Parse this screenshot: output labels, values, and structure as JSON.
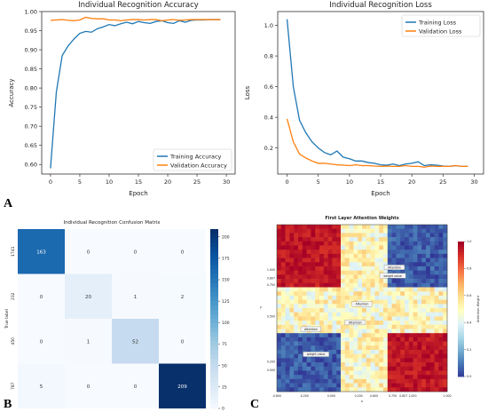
{
  "panel_labels": [
    "A",
    "B",
    "C"
  ],
  "chart_data": [
    {
      "type": "line",
      "title": "Individual Recognition Accuracy",
      "xlabel": "Epoch",
      "ylabel": "Accuracy",
      "xlim": [
        -1.5,
        31.5
      ],
      "ylim": [
        0.575,
        1.0
      ],
      "xticks": [
        0,
        5,
        10,
        15,
        20,
        25,
        30
      ],
      "yticks": [
        0.6,
        0.65,
        0.7,
        0.75,
        0.8,
        0.85,
        0.9,
        0.95,
        1.0
      ],
      "ytick_labels": [
        "0.60",
        "0.65",
        "0.70",
        "0.75",
        "0.80",
        "0.85",
        "0.90",
        "0.95",
        "1.00"
      ],
      "x": [
        0,
        1,
        2,
        3,
        4,
        5,
        6,
        7,
        8,
        9,
        10,
        11,
        12,
        13,
        14,
        15,
        16,
        17,
        18,
        19,
        20,
        21,
        22,
        23,
        24,
        25,
        26,
        27,
        28,
        29
      ],
      "series": [
        {
          "name": "Training Accuracy",
          "color": "#1f77b4",
          "values": [
            0.59,
            0.79,
            0.885,
            0.91,
            0.928,
            0.943,
            0.948,
            0.946,
            0.955,
            0.96,
            0.966,
            0.963,
            0.968,
            0.972,
            0.968,
            0.974,
            0.971,
            0.969,
            0.974,
            0.976,
            0.971,
            0.969,
            0.976,
            0.972,
            0.977,
            0.978,
            0.978,
            0.979,
            0.979,
            0.979
          ]
        },
        {
          "name": "Validation Accuracy",
          "color": "#ff7f0e",
          "values": [
            0.977,
            0.978,
            0.979,
            0.977,
            0.976,
            0.978,
            0.985,
            0.982,
            0.981,
            0.981,
            0.978,
            0.978,
            0.976,
            0.978,
            0.979,
            0.979,
            0.978,
            0.979,
            0.979,
            0.976,
            0.978,
            0.979,
            0.977,
            0.978,
            0.979,
            0.979,
            0.979,
            0.979,
            0.979,
            0.979
          ]
        }
      ],
      "legend": "bottom-right",
      "grid": false
    },
    {
      "type": "line",
      "title": "Individual Recognition Loss",
      "xlabel": "Epoch",
      "ylabel": "Loss",
      "xlim": [
        -1.5,
        31.5
      ],
      "ylim": [
        0.03,
        1.09
      ],
      "xticks": [
        0,
        5,
        10,
        15,
        20,
        25,
        30
      ],
      "yticks": [
        0.2,
        0.4,
        0.6,
        0.8,
        1.0
      ],
      "ytick_labels": [
        "0.2",
        "0.4",
        "0.6",
        "0.8",
        "1.0"
      ],
      "x": [
        0,
        1,
        2,
        3,
        4,
        5,
        6,
        7,
        8,
        9,
        10,
        11,
        12,
        13,
        14,
        15,
        16,
        17,
        18,
        19,
        20,
        21,
        22,
        23,
        24,
        25,
        26,
        27,
        28,
        29
      ],
      "series": [
        {
          "name": "Training Loss",
          "color": "#1f77b4",
          "values": [
            1.04,
            0.6,
            0.38,
            0.3,
            0.24,
            0.2,
            0.17,
            0.155,
            0.18,
            0.14,
            0.13,
            0.115,
            0.115,
            0.105,
            0.1,
            0.09,
            0.088,
            0.095,
            0.085,
            0.095,
            0.1,
            0.11,
            0.085,
            0.09,
            0.088,
            0.082,
            0.08,
            0.085,
            0.08,
            0.08
          ]
        },
        {
          "name": "Validation Loss",
          "color": "#ff7f0e",
          "values": [
            0.39,
            0.24,
            0.16,
            0.135,
            0.115,
            0.1,
            0.1,
            0.095,
            0.09,
            0.088,
            0.085,
            0.09,
            0.085,
            0.085,
            0.082,
            0.08,
            0.082,
            0.08,
            0.08,
            0.085,
            0.08,
            0.08,
            0.075,
            0.082,
            0.08,
            0.08,
            0.08,
            0.085,
            0.08,
            0.08
          ]
        }
      ],
      "legend": "top-right",
      "grid": false
    },
    {
      "type": "heatmap",
      "title": "Individual Recognition Confusion Matrix",
      "xlabel": "Predicted label",
      "ylabel": "True label",
      "x_categories": [
        "1741",
        "232",
        "450",
        "787"
      ],
      "y_categories": [
        "1741",
        "232",
        "450",
        "787"
      ],
      "values": [
        [
          163,
          0,
          0,
          0
        ],
        [
          0,
          20,
          1,
          2
        ],
        [
          0,
          1,
          52,
          0
        ],
        [
          5,
          0,
          0,
          209
        ]
      ],
      "colorbar_ticks": [
        0,
        25,
        50,
        75,
        100,
        125,
        150,
        175,
        200
      ],
      "colorbar_max": 209,
      "colormap": "Blues"
    },
    {
      "type": "heatmap",
      "title": "First Layer Attention Weights",
      "xlabel": "x",
      "ylabel": "y",
      "xtick_labels": [
        "-0.800",
        "-0.200",
        "0.000",
        "0.200",
        "0.600",
        "0.750",
        "0.807 1.000",
        "1.000"
      ],
      "ytick_labels": [
        "1.000",
        "0.807",
        "0.750",
        "0.500",
        "0.200",
        "0.000"
      ],
      "annotations": [
        "Attention",
        "weight value",
        "Attention",
        "Attention",
        "Attention",
        "weight value"
      ],
      "colorbar_label": "Attention Weight",
      "colorbar_ticks": [
        0.0,
        0.2,
        0.4,
        0.6,
        0.8,
        1.0
      ],
      "colorbar_tick_labels": [
        "0.0",
        "0.2",
        "0.4",
        "0.6",
        "0.8",
        "1.0"
      ],
      "colormap": "RdYlBu_r"
    }
  ]
}
